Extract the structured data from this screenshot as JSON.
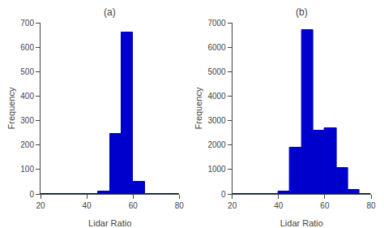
{
  "chart_data": [
    {
      "type": "histogram",
      "title": "(a)",
      "xlabel": "Lidar Ratio",
      "ylabel": "Frequency",
      "color": "#0000cc",
      "bins": [
        20,
        25,
        30,
        35,
        40,
        45,
        50,
        55,
        60,
        65,
        70,
        75,
        80
      ],
      "values": [
        0,
        0,
        0,
        0,
        0,
        10,
        245,
        660,
        50,
        0,
        0,
        0
      ],
      "xlim": [
        20,
        80
      ],
      "ylim": [
        0,
        700
      ],
      "xticks": [
        20,
        40,
        60,
        80
      ],
      "yticks": [
        0,
        100,
        200,
        300,
        400,
        500,
        600,
        700
      ],
      "grid": false
    },
    {
      "type": "histogram",
      "title": "(b)",
      "xlabel": "Lidar Ratio",
      "ylabel": "Frequency",
      "color": "#0000cc",
      "bins": [
        20,
        25,
        30,
        35,
        40,
        45,
        50,
        55,
        60,
        65,
        70,
        75,
        80
      ],
      "values": [
        0,
        0,
        0,
        0,
        100,
        1900,
        6700,
        2600,
        2700,
        1050,
        150,
        0
      ],
      "xlim": [
        20,
        80
      ],
      "ylim": [
        0,
        7000
      ],
      "xticks": [
        20,
        40,
        60,
        80
      ],
      "yticks": [
        0,
        1000,
        2000,
        3000,
        4000,
        5000,
        6000,
        7000
      ],
      "grid": false
    }
  ]
}
